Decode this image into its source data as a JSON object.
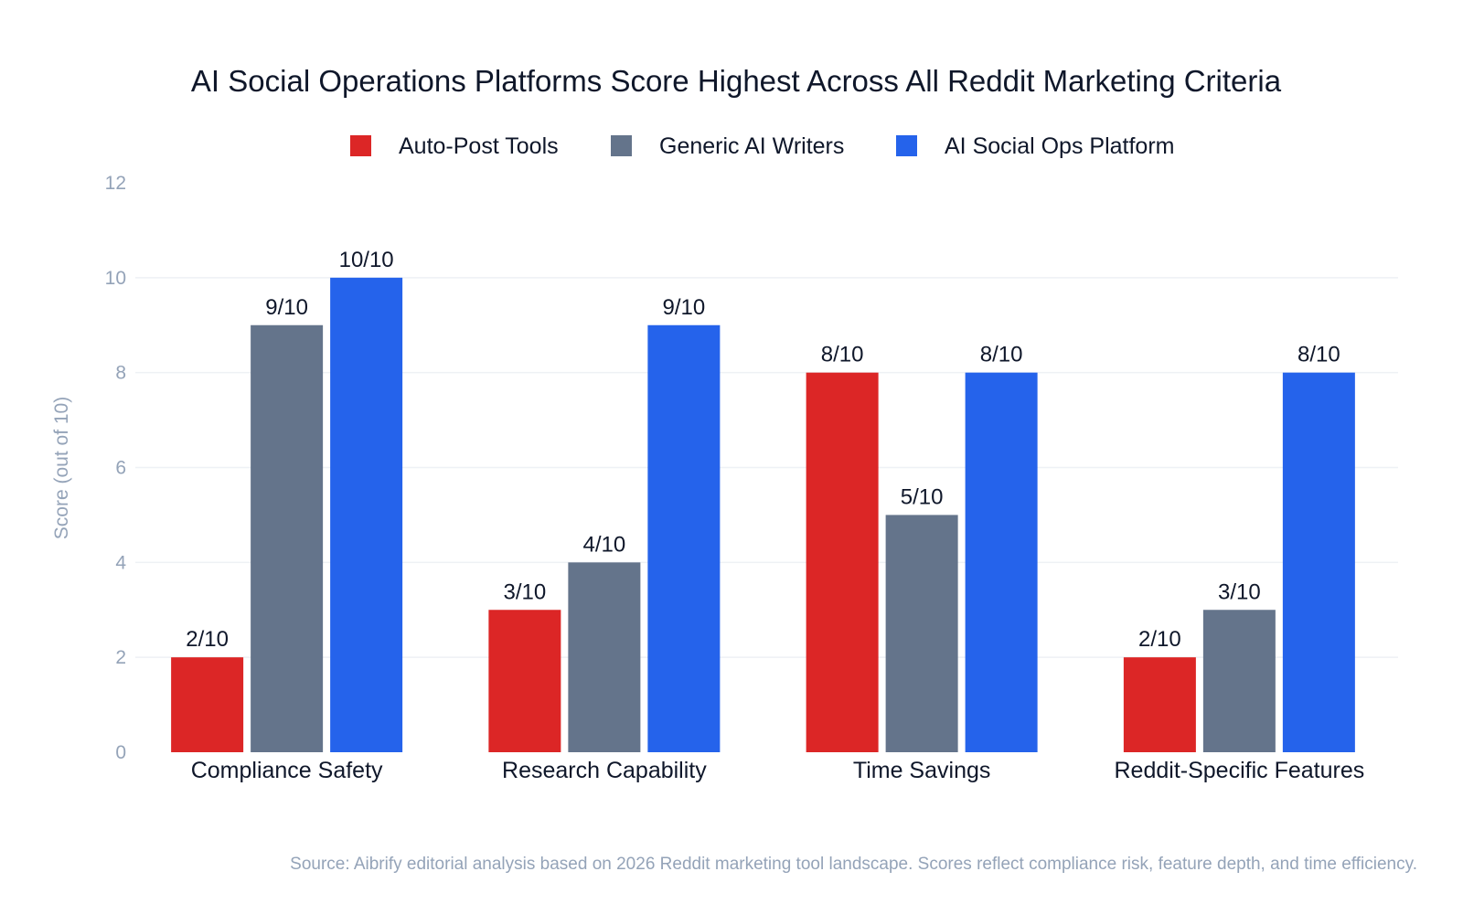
{
  "chart_data": {
    "type": "bar",
    "title": "AI Social Operations Platforms Score Highest Across All Reddit Marketing Criteria",
    "xlabel": "",
    "ylabel": "Score (out of 10)",
    "ylim": [
      0,
      12
    ],
    "yticks": [
      0,
      2,
      4,
      6,
      8,
      10,
      12
    ],
    "grid": true,
    "legend_position": "top-center",
    "categories": [
      "Compliance Safety",
      "Research Capability",
      "Time Savings",
      "Reddit-Specific Features"
    ],
    "series": [
      {
        "name": "Auto-Post Tools",
        "color": "#dc2626",
        "values": [
          2,
          3,
          8,
          2
        ],
        "labels": [
          "2/10",
          "3/10",
          "8/10",
          "2/10"
        ]
      },
      {
        "name": "Generic AI Writers",
        "color": "#64748b",
        "values": [
          9,
          4,
          5,
          3
        ],
        "labels": [
          "9/10",
          "4/10",
          "5/10",
          "3/10"
        ]
      },
      {
        "name": "AI Social Ops Platform",
        "color": "#2563eb",
        "values": [
          10,
          9,
          8,
          8
        ],
        "labels": [
          "10/10",
          "9/10",
          "8/10",
          "8/10"
        ]
      }
    ],
    "source": "Source: Aibrify editorial analysis based on 2026 Reddit marketing tool landscape. Scores reflect compliance risk, feature depth, and time efficiency."
  }
}
